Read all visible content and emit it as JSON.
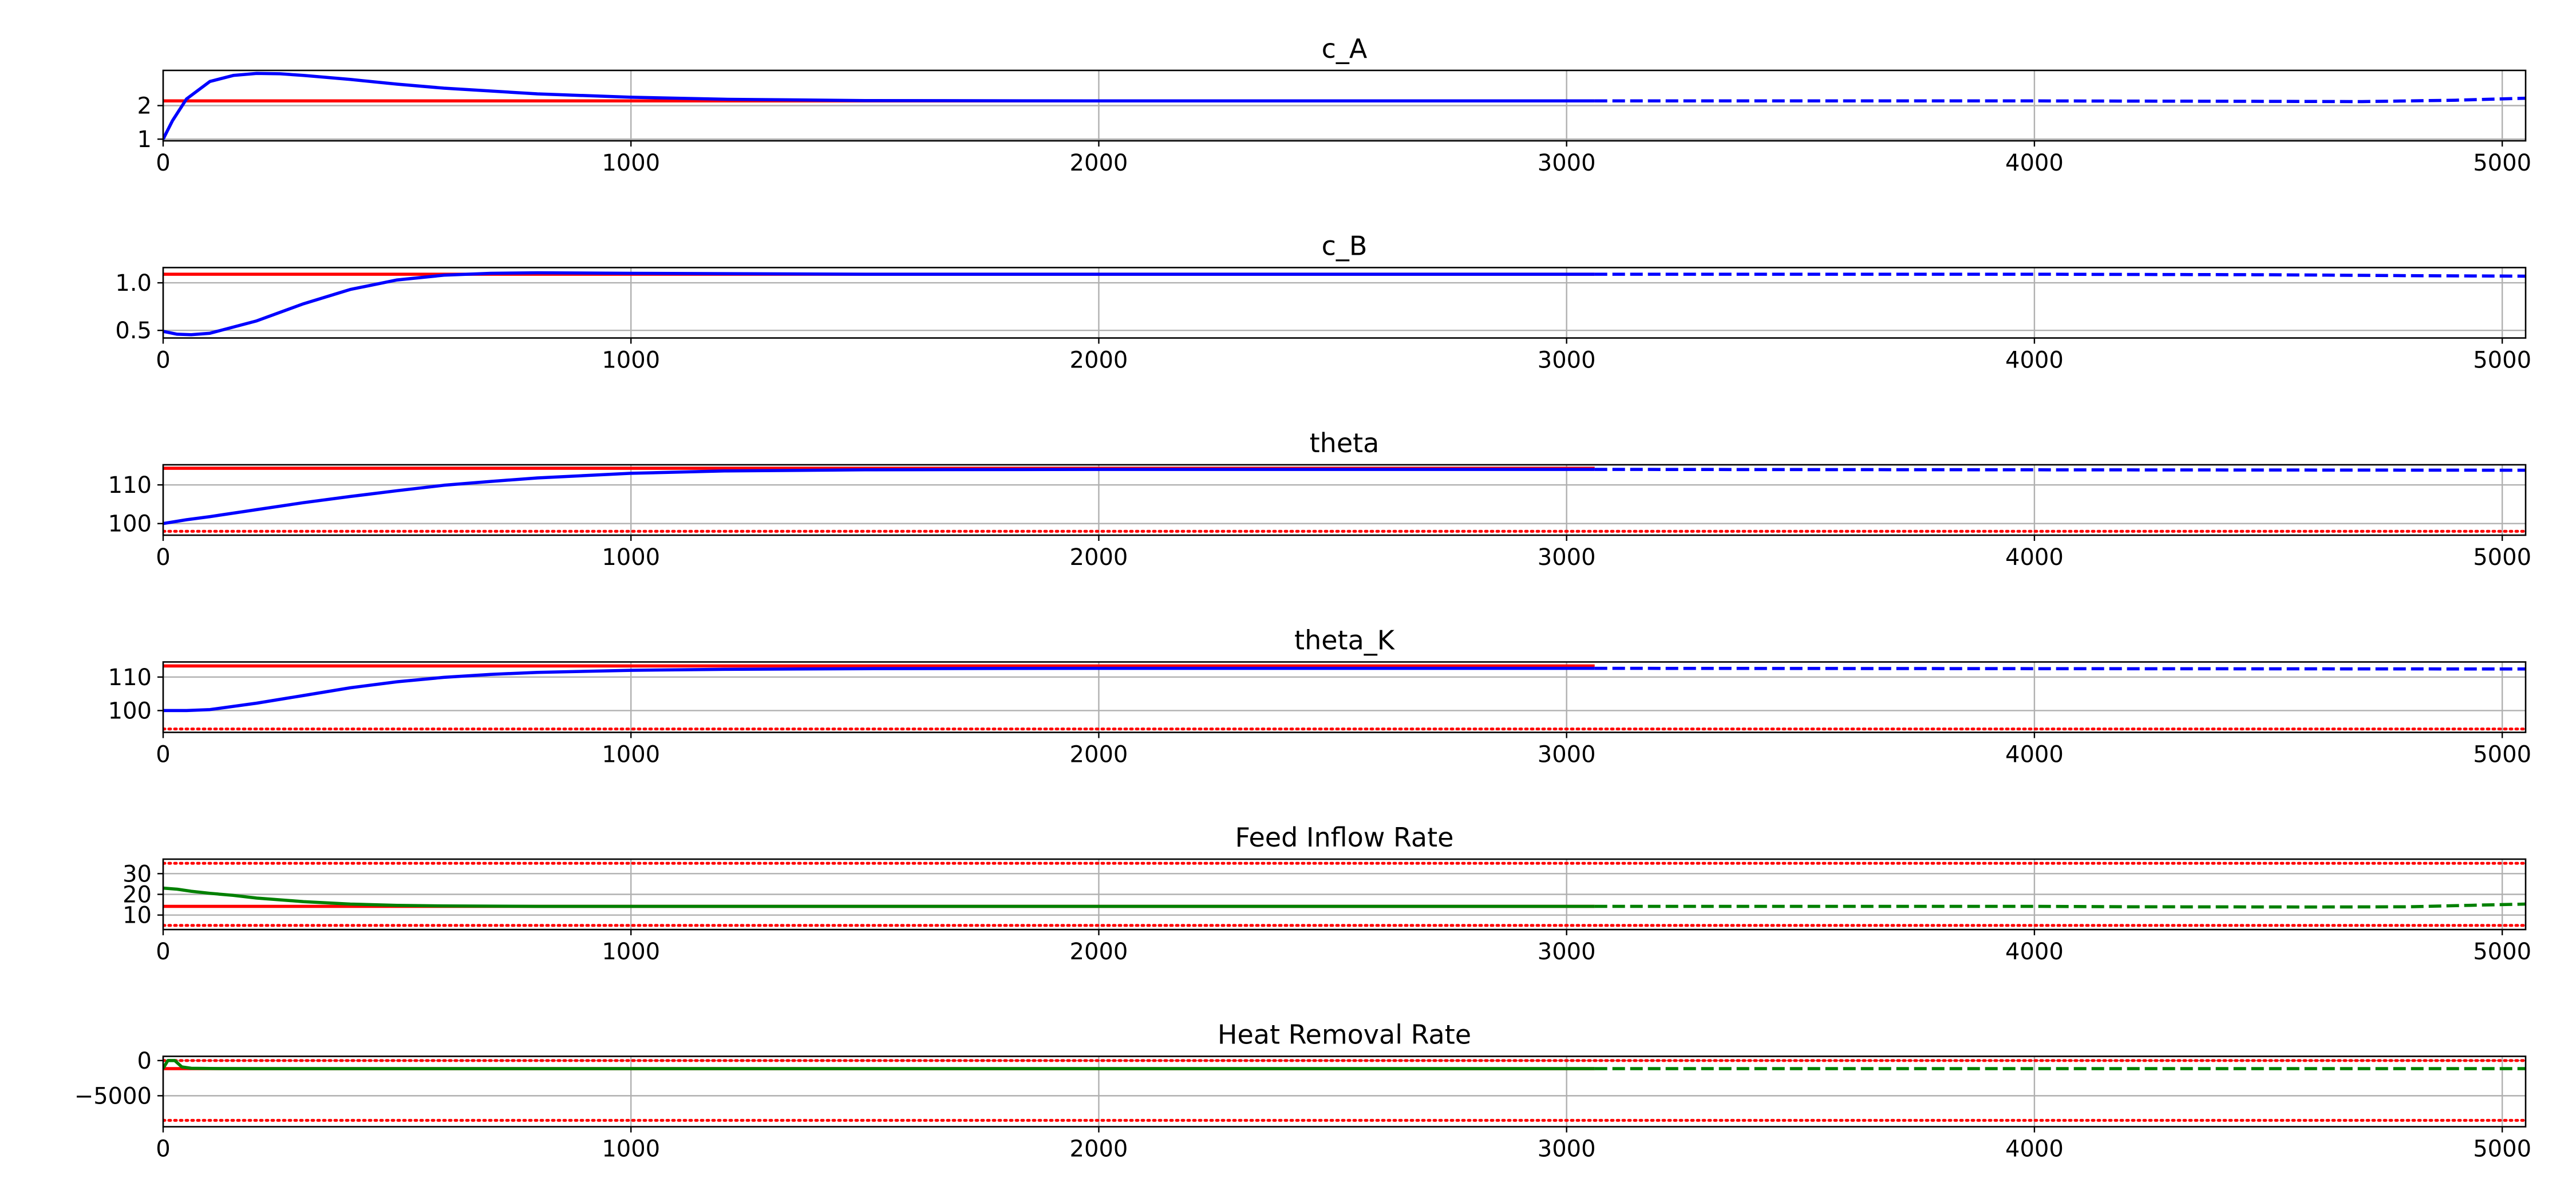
{
  "figure": {
    "colors": {
      "actual": "#0000ff",
      "input": "#008000",
      "setpoint": "#ff0000",
      "bound": "#ff0000",
      "grid": "#b0b0b0"
    }
  },
  "chart_data": [
    {
      "type": "line",
      "title": "c_A",
      "xlim": [
        0,
        5050
      ],
      "ylim": [
        0.95,
        3.05
      ],
      "x_ticks": [
        0,
        1000,
        2000,
        3000,
        4000,
        5000
      ],
      "y_ticks": [
        1,
        2
      ],
      "grid": true,
      "legend": "none",
      "series": [
        {
          "role": "setpoint",
          "style": "solid",
          "color": "#ff0000",
          "x": [
            0,
            3060
          ],
          "y": [
            2.14,
            2.14
          ]
        },
        {
          "role": "measured",
          "style": "solid",
          "color": "#0000ff",
          "x": [
            0,
            20,
            50,
            100,
            150,
            200,
            250,
            300,
            400,
            500,
            600,
            800,
            1000,
            1200,
            1500,
            2000,
            2500,
            3060
          ],
          "y": [
            1.0,
            1.55,
            2.2,
            2.72,
            2.9,
            2.96,
            2.95,
            2.9,
            2.78,
            2.64,
            2.52,
            2.35,
            2.25,
            2.19,
            2.15,
            2.14,
            2.14,
            2.14
          ]
        },
        {
          "role": "prediction",
          "style": "dashed",
          "color": "#0000ff",
          "x": [
            3060,
            3500,
            4000,
            4400,
            4700,
            4900,
            5050
          ],
          "y": [
            2.14,
            2.14,
            2.14,
            2.13,
            2.12,
            2.16,
            2.22
          ]
        }
      ]
    },
    {
      "type": "line",
      "title": "c_B",
      "xlim": [
        0,
        5050
      ],
      "ylim": [
        0.42,
        1.16
      ],
      "x_ticks": [
        0,
        1000,
        2000,
        3000,
        4000,
        5000
      ],
      "y_ticks": [
        0.5,
        1.0
      ],
      "y_tick_labels": [
        "0.5",
        "1.0"
      ],
      "grid": true,
      "legend": "none",
      "series": [
        {
          "role": "setpoint",
          "style": "solid",
          "color": "#ff0000",
          "x": [
            0,
            3060
          ],
          "y": [
            1.09,
            1.09
          ]
        },
        {
          "role": "measured",
          "style": "solid",
          "color": "#0000ff",
          "x": [
            0,
            30,
            60,
            100,
            200,
            300,
            400,
            500,
            600,
            700,
            800,
            1000,
            1500,
            2000,
            3060
          ],
          "y": [
            0.49,
            0.46,
            0.455,
            0.47,
            0.6,
            0.78,
            0.93,
            1.03,
            1.08,
            1.1,
            1.105,
            1.1,
            1.09,
            1.09,
            1.09
          ]
        },
        {
          "role": "prediction",
          "style": "dashed",
          "color": "#0000ff",
          "x": [
            3060,
            4000,
            4500,
            4800,
            5050
          ],
          "y": [
            1.09,
            1.09,
            1.085,
            1.075,
            1.07
          ]
        }
      ]
    },
    {
      "type": "line",
      "title": "theta",
      "xlim": [
        0,
        5050
      ],
      "ylim": [
        97,
        115.2
      ],
      "x_ticks": [
        0,
        1000,
        2000,
        3000,
        4000,
        5000
      ],
      "y_ticks": [
        100,
        110
      ],
      "grid": true,
      "legend": "none",
      "series": [
        {
          "role": "setpoint",
          "style": "solid",
          "color": "#ff0000",
          "x": [
            0,
            3060
          ],
          "y": [
            114.3,
            114.3
          ]
        },
        {
          "role": "lower bound",
          "style": "dotted",
          "color": "#ff0000",
          "x": [
            0,
            5050
          ],
          "y": [
            98.0,
            98.0
          ]
        },
        {
          "role": "measured",
          "style": "solid",
          "color": "#0000ff",
          "x": [
            0,
            50,
            100,
            200,
            300,
            400,
            500,
            600,
            700,
            800,
            1000,
            1200,
            1500,
            2000,
            2500,
            3060
          ],
          "y": [
            100,
            101,
            101.8,
            103.6,
            105.4,
            107,
            108.5,
            109.9,
            110.9,
            111.8,
            113.0,
            113.6,
            113.9,
            114.0,
            114.0,
            114.0
          ]
        },
        {
          "role": "prediction",
          "style": "dashed",
          "color": "#0000ff",
          "x": [
            3060,
            4000,
            5050
          ],
          "y": [
            114.0,
            113.9,
            113.8
          ]
        }
      ]
    },
    {
      "type": "line",
      "title": "theta_K",
      "xlim": [
        0,
        5050
      ],
      "ylim": [
        93.5,
        114.5
      ],
      "x_ticks": [
        0,
        1000,
        2000,
        3000,
        4000,
        5000
      ],
      "y_ticks": [
        100,
        110
      ],
      "grid": true,
      "legend": "none",
      "series": [
        {
          "role": "setpoint",
          "style": "solid",
          "color": "#ff0000",
          "x": [
            0,
            3060
          ],
          "y": [
            113.3,
            113.3
          ]
        },
        {
          "role": "lower bound",
          "style": "dotted",
          "color": "#ff0000",
          "x": [
            0,
            5050
          ],
          "y": [
            94.5,
            94.5
          ]
        },
        {
          "role": "measured",
          "style": "solid",
          "color": "#0000ff",
          "x": [
            0,
            50,
            100,
            200,
            300,
            400,
            500,
            600,
            700,
            800,
            1000,
            1200,
            1500,
            2000,
            3060
          ],
          "y": [
            100,
            100,
            100.3,
            102.2,
            104.5,
            106.8,
            108.6,
            109.9,
            110.8,
            111.4,
            112.0,
            112.3,
            112.5,
            112.6,
            112.6
          ]
        },
        {
          "role": "prediction",
          "style": "dashed",
          "color": "#0000ff",
          "x": [
            3060,
            4000,
            5050
          ],
          "y": [
            112.6,
            112.5,
            112.4
          ]
        }
      ]
    },
    {
      "type": "line",
      "title": "Feed Inflow Rate",
      "xlim": [
        0,
        5050
      ],
      "ylim": [
        3,
        37
      ],
      "x_ticks": [
        0,
        1000,
        2000,
        3000,
        4000,
        5000
      ],
      "y_ticks": [
        10,
        20,
        30
      ],
      "grid": true,
      "legend": "none",
      "series": [
        {
          "role": "setpoint",
          "style": "solid",
          "color": "#ff0000",
          "x": [
            0,
            3060
          ],
          "y": [
            14.2,
            14.2
          ]
        },
        {
          "role": "upper bound",
          "style": "dotted",
          "color": "#ff0000",
          "x": [
            0,
            5050
          ],
          "y": [
            35,
            35
          ]
        },
        {
          "role": "lower bound",
          "style": "dotted",
          "color": "#ff0000",
          "x": [
            0,
            5050
          ],
          "y": [
            5,
            5
          ]
        },
        {
          "role": "input",
          "style": "solid",
          "color": "#008000",
          "x": [
            0,
            30,
            60,
            100,
            150,
            200,
            300,
            400,
            500,
            600,
            800,
            1000,
            2000,
            3060
          ],
          "y": [
            23,
            22.5,
            21.5,
            20.5,
            19.5,
            18.2,
            16.5,
            15.3,
            14.7,
            14.4,
            14.2,
            14.2,
            14.2,
            14.2
          ]
        },
        {
          "role": "planned input",
          "style": "dashed",
          "color": "#008000",
          "x": [
            3060,
            4000,
            4200,
            4600,
            4800,
            4950,
            5050
          ],
          "y": [
            14.2,
            14.2,
            14.0,
            13.9,
            14.0,
            14.8,
            15.3
          ]
        }
      ]
    },
    {
      "type": "line",
      "title": "Heat Removal Rate",
      "xlim": [
        0,
        5050
      ],
      "ylim": [
        -9400,
        600
      ],
      "x_ticks": [
        0,
        1000,
        2000,
        3000,
        4000,
        5000
      ],
      "y_ticks": [
        -5000,
        0
      ],
      "y_tick_labels": [
        "−5000",
        "0"
      ],
      "grid": true,
      "legend": "none",
      "series": [
        {
          "role": "setpoint",
          "style": "solid",
          "color": "#ff0000",
          "x": [
            0,
            3060
          ],
          "y": [
            -1150,
            -1150
          ]
        },
        {
          "role": "upper bound",
          "style": "dotted",
          "color": "#ff0000",
          "x": [
            0,
            5050
          ],
          "y": [
            0,
            0
          ]
        },
        {
          "role": "lower bound",
          "style": "dotted",
          "color": "#ff0000",
          "x": [
            0,
            5050
          ],
          "y": [
            -8500,
            -8500
          ]
        },
        {
          "role": "input",
          "style": "solid",
          "color": "#008000",
          "x": [
            0,
            10,
            25,
            40,
            60,
            100,
            200,
            400,
            600,
            1000,
            2000,
            3060
          ],
          "y": [
            -1100,
            0,
            0,
            -900,
            -1100,
            -1130,
            -1150,
            -1150,
            -1150,
            -1150,
            -1150,
            -1150
          ]
        },
        {
          "role": "planned input",
          "style": "dashed",
          "color": "#008000",
          "x": [
            3060,
            4000,
            5050
          ],
          "y": [
            -1150,
            -1150,
            -1150
          ]
        }
      ]
    }
  ]
}
